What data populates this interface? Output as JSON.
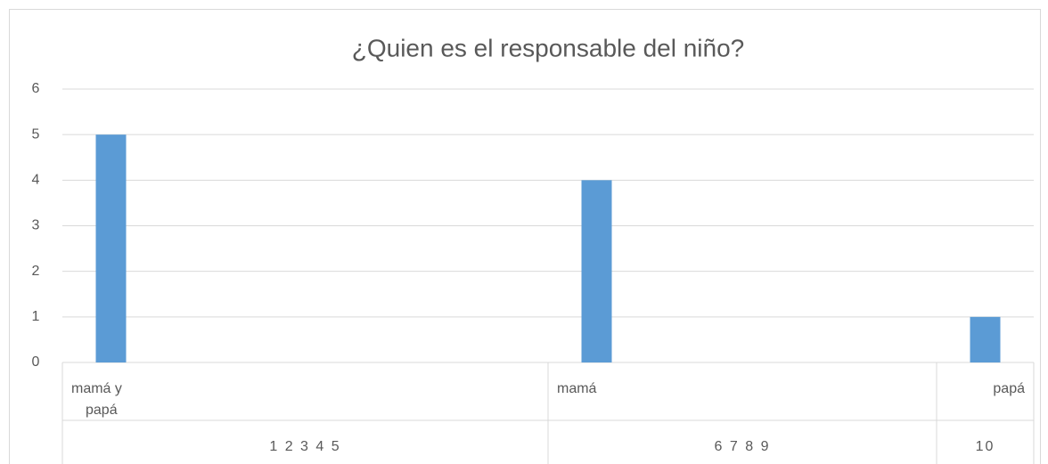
{
  "chart_data": {
    "type": "bar",
    "title": "¿Quien es el responsable del niño?",
    "categories": [
      "mamá y papá",
      null,
      null,
      null,
      null,
      "mamá",
      null,
      null,
      null,
      "papá"
    ],
    "group_labels": [
      "1 2 3 4 5",
      "6 7 8 9",
      "10"
    ],
    "values": [
      5,
      null,
      null,
      null,
      null,
      4,
      null,
      null,
      null,
      1
    ],
    "color": "#5b9bd5",
    "ylim": [
      0,
      6
    ],
    "yticks": [
      0,
      1,
      2,
      3,
      4,
      5,
      6
    ],
    "grid": true
  }
}
